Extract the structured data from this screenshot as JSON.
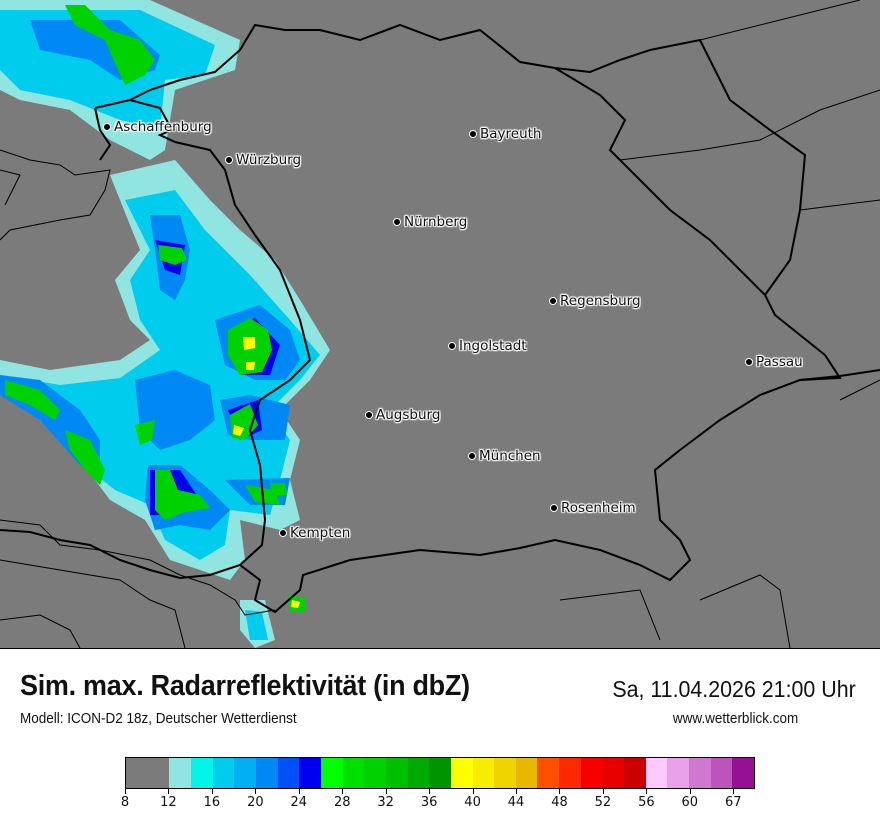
{
  "header": {
    "title": "Sim. max. Radarreflektivität (in dbZ)",
    "datetime": "Sa, 11.04.2026 21:00 Uhr",
    "model": "Modell: ICON-D2 18z, Deutscher Wetterdienst",
    "website": "www.wetterblick.com"
  },
  "map": {
    "background_color": "#7b7b7b",
    "cities": [
      {
        "name": "Aschaffenburg"
      },
      {
        "name": "Würzburg"
      },
      {
        "name": "Bayreuth"
      },
      {
        "name": "Nürnberg"
      },
      {
        "name": "Regensburg"
      },
      {
        "name": "Ingolstadt"
      },
      {
        "name": "Passau"
      },
      {
        "name": "Augsburg"
      },
      {
        "name": "München"
      },
      {
        "name": "Rosenheim"
      },
      {
        "name": "Kempten"
      }
    ]
  },
  "legend": {
    "unit": "dbZ",
    "tick_labels": [
      "8",
      "12",
      "16",
      "20",
      "24",
      "28",
      "32",
      "36",
      "40",
      "44",
      "48",
      "52",
      "56",
      "60",
      "67"
    ],
    "bins": [
      {
        "from": 8,
        "to": 12,
        "color": "#7b7b7b"
      },
      {
        "from": 12,
        "to": 14,
        "color": "#90e5e0"
      },
      {
        "from": 14,
        "to": 16,
        "color": "#00f5e8"
      },
      {
        "from": 16,
        "to": 18,
        "color": "#00ccee"
      },
      {
        "from": 18,
        "to": 20,
        "color": "#00b0f2"
      },
      {
        "from": 20,
        "to": 22,
        "color": "#0088f5"
      },
      {
        "from": 22,
        "to": 24,
        "color": "#0050f8"
      },
      {
        "from": 24,
        "to": 26,
        "color": "#0000f0"
      },
      {
        "from": 26,
        "to": 28,
        "color": "#00ff00"
      },
      {
        "from": 28,
        "to": 30,
        "color": "#00e000"
      },
      {
        "from": 30,
        "to": 32,
        "color": "#00d200"
      },
      {
        "from": 32,
        "to": 34,
        "color": "#00be00"
      },
      {
        "from": 34,
        "to": 36,
        "color": "#00aa00"
      },
      {
        "from": 36,
        "to": 38,
        "color": "#009500"
      },
      {
        "from": 38,
        "to": 40,
        "color": "#ffff00"
      },
      {
        "from": 40,
        "to": 42,
        "color": "#f8ec00"
      },
      {
        "from": 42,
        "to": 44,
        "color": "#f0d400"
      },
      {
        "from": 44,
        "to": 46,
        "color": "#e8b800"
      },
      {
        "from": 46,
        "to": 48,
        "color": "#ff5000"
      },
      {
        "from": 48,
        "to": 50,
        "color": "#ff2800"
      },
      {
        "from": 50,
        "to": 52,
        "color": "#f80000"
      },
      {
        "from": 52,
        "to": 54,
        "color": "#e80000"
      },
      {
        "from": 54,
        "to": 56,
        "color": "#cc0000"
      },
      {
        "from": 56,
        "to": 58,
        "color": "#ffc8ff"
      },
      {
        "from": 58,
        "to": 60,
        "color": "#e8a0e8"
      },
      {
        "from": 60,
        "to": 62,
        "color": "#d078d0"
      },
      {
        "from": 62,
        "to": 64,
        "color": "#bb55bb"
      },
      {
        "from": 64,
        "to": 67,
        "color": "#951095"
      }
    ]
  }
}
